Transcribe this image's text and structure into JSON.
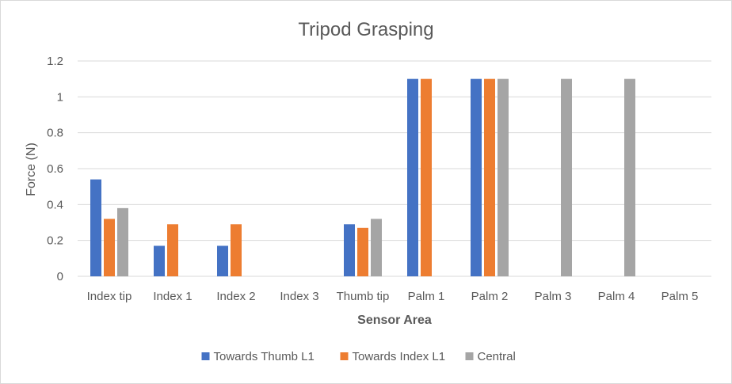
{
  "chart_data": {
    "type": "bar",
    "title": "Tripod Grasping",
    "xlabel": "Sensor Area",
    "ylabel": "Force (N)",
    "categories": [
      "Index tip",
      "Index 1",
      "Index 2",
      "Index 3",
      "Thumb tip",
      "Palm 1",
      "Palm 2",
      "Palm 3",
      "Palm 4",
      "Palm 5"
    ],
    "ylim": [
      0,
      1.2
    ],
    "y_ticks": [
      "0",
      "0.2",
      "0.4",
      "0.6",
      "0.8",
      "1",
      "1.2"
    ],
    "grid": true,
    "legend_position": "bottom",
    "series": [
      {
        "name": "Towards Thumb L1",
        "color": "#4472c4",
        "values": [
          0.54,
          0.17,
          0.17,
          0,
          0.29,
          1.1,
          1.1,
          0,
          0,
          0
        ]
      },
      {
        "name": "Towards Index L1",
        "color": "#ed7d31",
        "values": [
          0.32,
          0.29,
          0.29,
          0,
          0.27,
          1.1,
          1.1,
          0,
          0,
          0
        ]
      },
      {
        "name": "Central",
        "color": "#a5a5a5",
        "values": [
          0.38,
          0,
          0,
          0,
          0.32,
          0,
          1.1,
          1.1,
          1.1,
          0
        ]
      }
    ]
  }
}
